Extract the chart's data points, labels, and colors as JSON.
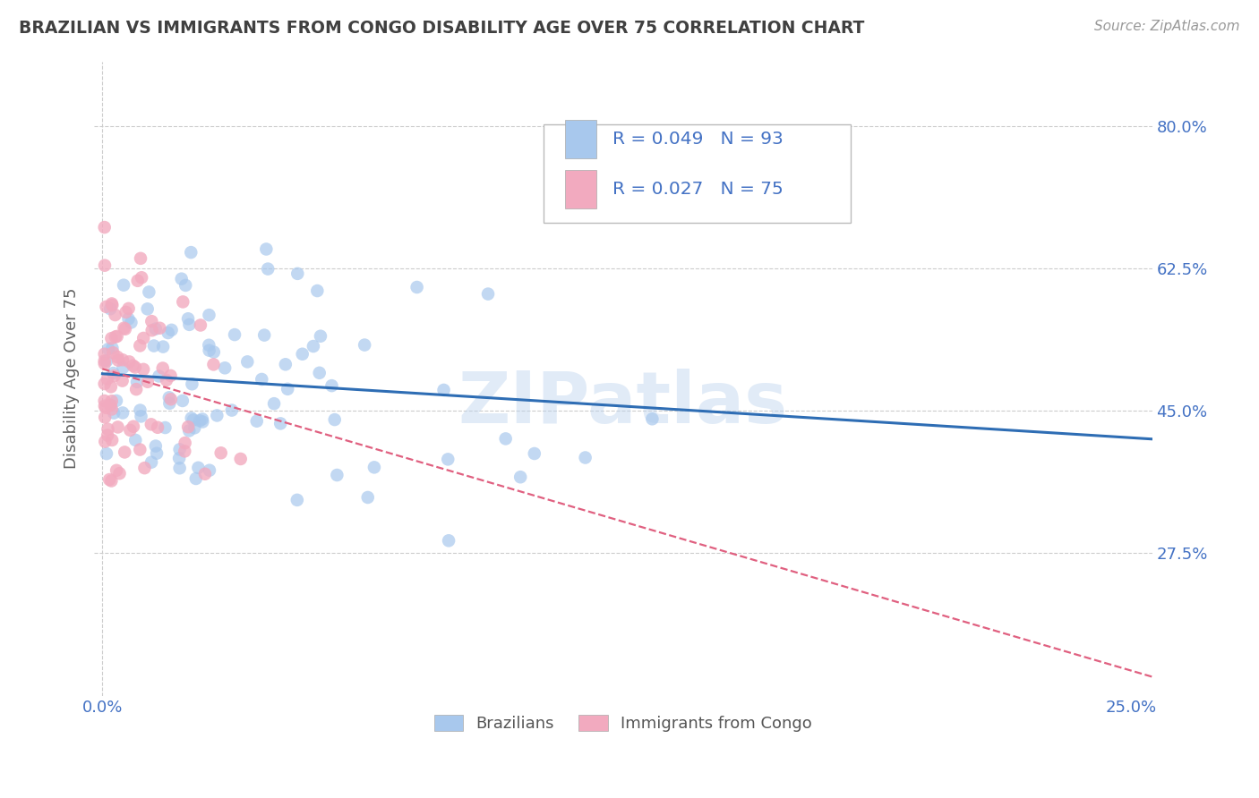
{
  "title": "BRAZILIAN VS IMMIGRANTS FROM CONGO DISABILITY AGE OVER 75 CORRELATION CHART",
  "source": "Source: ZipAtlas.com",
  "ylabel": "Disability Age Over 75",
  "xlim": [
    -0.002,
    0.255
  ],
  "ylim": [
    0.1,
    0.88
  ],
  "xticks": [
    0.0,
    0.05,
    0.1,
    0.15,
    0.2,
    0.25
  ],
  "xticklabels": [
    "0.0%",
    "",
    "",
    "",
    "",
    "25.0%"
  ],
  "yticks": [
    0.275,
    0.45,
    0.625,
    0.8
  ],
  "yticklabels": [
    "27.5%",
    "45.0%",
    "62.5%",
    "80.0%"
  ],
  "brazilian_R": 0.049,
  "brazilian_N": 93,
  "congo_R": 0.027,
  "congo_N": 75,
  "brazilian_color": "#A8C8ED",
  "congo_color": "#F2AABF",
  "brazilian_line_color": "#2E6DB4",
  "congo_line_color": "#E06080",
  "watermark": "ZIPatlas",
  "background_color": "#FFFFFF",
  "grid_color": "#CCCCCC",
  "title_color": "#404040",
  "axis_label_color": "#606060",
  "tick_color": "#4472C4",
  "legend_text_color": "#333333",
  "legend_RN_color": "#4472C4"
}
